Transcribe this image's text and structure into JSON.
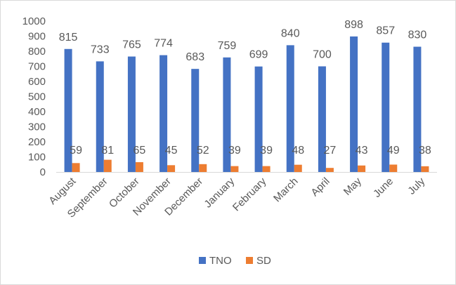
{
  "chart_data": {
    "type": "bar",
    "categories": [
      "August",
      "September",
      "October",
      "November",
      "December",
      "January",
      "February",
      "March",
      "April",
      "May",
      "June",
      "July"
    ],
    "series": [
      {
        "name": "TNO",
        "color": "#4472c4",
        "values": [
          815,
          733,
          765,
          774,
          683,
          759,
          699,
          840,
          700,
          898,
          857,
          830
        ]
      },
      {
        "name": "SD",
        "color": "#ed7d31",
        "values": [
          59,
          81,
          65,
          45,
          52,
          39,
          39,
          48,
          27,
          43,
          49,
          38
        ]
      }
    ],
    "ylim": [
      0,
      1000
    ],
    "ytick_step": 100,
    "grid": false,
    "data_labels": true,
    "legend": {
      "position": "bottom"
    }
  }
}
